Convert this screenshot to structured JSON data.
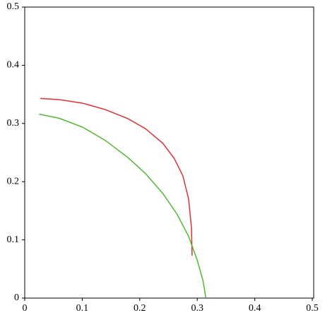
{
  "chart_data": {
    "type": "line",
    "series": [
      {
        "color": "#e03030",
        "x": [
          0.027,
          0.06,
          0.1,
          0.14,
          0.18,
          0.21,
          0.24,
          0.26,
          0.275,
          0.285,
          0.29,
          0.291
        ],
        "values": [
          0.343,
          0.341,
          0.335,
          0.324,
          0.308,
          0.291,
          0.266,
          0.24,
          0.21,
          0.17,
          0.12,
          0.073
        ]
      },
      {
        "color": "#50b830",
        "x": [
          0.025,
          0.06,
          0.1,
          0.14,
          0.18,
          0.21,
          0.24,
          0.265,
          0.285,
          0.3,
          0.31,
          0.315
        ],
        "values": [
          0.316,
          0.309,
          0.294,
          0.271,
          0.241,
          0.214,
          0.18,
          0.144,
          0.106,
          0.065,
          0.03,
          0.0
        ]
      }
    ],
    "xlim": [
      0,
      0.5
    ],
    "ylim": [
      0,
      0.5
    ],
    "xticks": [
      0,
      0.1,
      0.2,
      0.3,
      0.4,
      0.5
    ],
    "yticks": [
      0,
      0.1,
      0.2,
      0.3,
      0.4,
      0.5
    ],
    "grid": false
  }
}
